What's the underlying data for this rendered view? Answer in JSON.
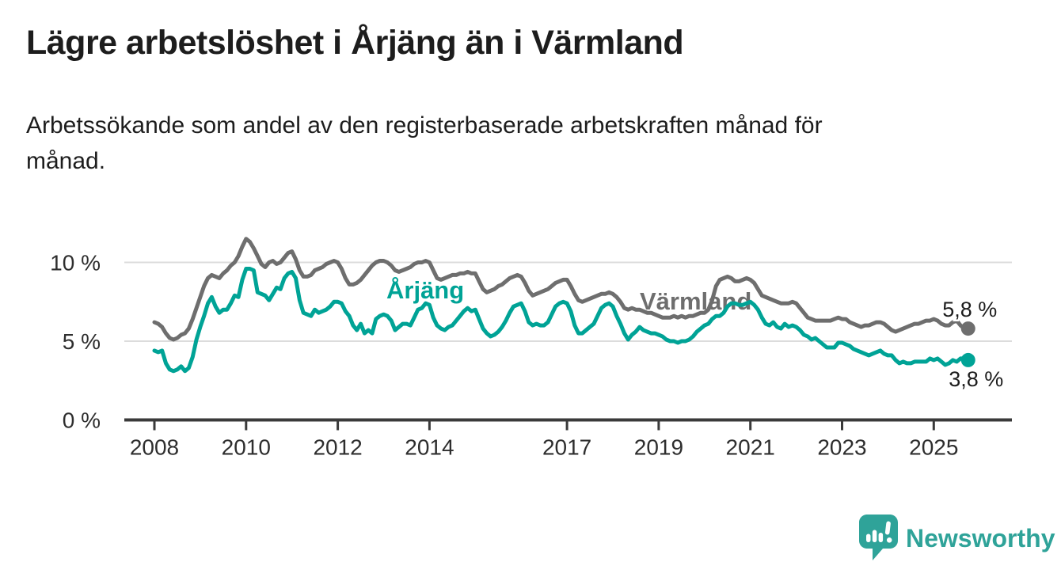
{
  "header": {
    "title": "Lägre arbetslöshet i Årjäng än i Värmland",
    "subtitle_lines": [
      "Arbetssökande som andel av den registerbaserade arbetskraften månad för",
      "månad."
    ]
  },
  "chart_data": {
    "type": "line",
    "unit": "%",
    "x_start": {
      "year": 2008,
      "month": 1
    },
    "x_end": {
      "year": 2025,
      "month": 10
    },
    "x_ticks": [
      2008,
      2010,
      2012,
      2014,
      2017,
      2019,
      2021,
      2023,
      2025
    ],
    "y_ticks": [
      {
        "value": 0,
        "label": "0 %"
      },
      {
        "value": 5,
        "label": "5 %"
      },
      {
        "value": 10,
        "label": "10 %"
      }
    ],
    "ylim": [
      0,
      12
    ],
    "grid": "horizontal",
    "grid_color": "#dcdcdc",
    "axis_color": "#3a3a3a",
    "series": [
      {
        "id": "varmland",
        "name": "Värmland",
        "color": "#6e6e6e",
        "end_label": "5,8 %",
        "final_value": 5.8,
        "values": [
          6.2,
          6.1,
          5.9,
          5.5,
          5.2,
          5.1,
          5.2,
          5.4,
          5.5,
          5.8,
          6.4,
          7.1,
          7.8,
          8.5,
          9.0,
          9.2,
          9.1,
          9.0,
          9.3,
          9.5,
          9.8,
          10.0,
          10.4,
          11.0,
          11.5,
          11.3,
          10.9,
          10.4,
          9.9,
          9.7,
          10.0,
          10.1,
          9.9,
          10.0,
          10.3,
          10.6,
          10.7,
          10.2,
          9.5,
          9.1,
          9.1,
          9.2,
          9.5,
          9.6,
          9.7,
          9.9,
          10.0,
          10.1,
          10.0,
          9.6,
          9.0,
          8.6,
          8.6,
          8.7,
          8.9,
          9.2,
          9.5,
          9.8,
          10.0,
          10.1,
          10.1,
          10.0,
          9.8,
          9.5,
          9.4,
          9.5,
          9.6,
          9.7,
          9.9,
          10.0,
          10.0,
          10.1,
          10.0,
          9.5,
          9.0,
          8.9,
          9.0,
          9.1,
          9.2,
          9.2,
          9.3,
          9.3,
          9.4,
          9.3,
          9.3,
          8.8,
          8.3,
          8.1,
          8.2,
          8.3,
          8.5,
          8.6,
          8.8,
          9.0,
          9.1,
          9.2,
          9.1,
          8.7,
          8.2,
          7.9,
          8.0,
          8.1,
          8.2,
          8.3,
          8.5,
          8.7,
          8.8,
          8.9,
          8.9,
          8.5,
          8.0,
          7.6,
          7.5,
          7.6,
          7.7,
          7.8,
          7.9,
          8.0,
          8.0,
          8.1,
          8.0,
          7.8,
          7.5,
          7.1,
          7.0,
          7.1,
          7.0,
          7.0,
          6.9,
          6.8,
          6.8,
          6.7,
          6.6,
          6.5,
          6.5,
          6.5,
          6.6,
          6.5,
          6.6,
          6.5,
          6.6,
          6.6,
          6.7,
          6.8,
          6.8,
          7.0,
          7.6,
          8.5,
          8.9,
          9.0,
          9.1,
          9.0,
          8.8,
          8.8,
          8.9,
          9.0,
          8.9,
          8.7,
          8.3,
          7.9,
          7.8,
          7.7,
          7.6,
          7.5,
          7.4,
          7.4,
          7.4,
          7.5,
          7.4,
          7.1,
          6.8,
          6.5,
          6.4,
          6.3,
          6.3,
          6.3,
          6.3,
          6.3,
          6.4,
          6.5,
          6.4,
          6.4,
          6.2,
          6.1,
          6.0,
          5.9,
          6.0,
          6.0,
          6.1,
          6.2,
          6.2,
          6.1,
          5.9,
          5.7,
          5.6,
          5.7,
          5.8,
          5.9,
          6.0,
          6.1,
          6.1,
          6.2,
          6.3,
          6.3,
          6.4,
          6.3,
          6.1,
          6.0,
          6.0,
          6.2,
          6.3,
          6.0,
          5.8,
          5.8
        ]
      },
      {
        "id": "arjang",
        "name": "Årjäng",
        "color": "#00a396",
        "end_label": "3,8 %",
        "final_value": 3.8,
        "values": [
          4.4,
          4.3,
          4.4,
          3.6,
          3.2,
          3.1,
          3.2,
          3.4,
          3.1,
          3.3,
          4.0,
          5.1,
          5.9,
          6.6,
          7.4,
          7.8,
          7.2,
          6.8,
          7.0,
          7.0,
          7.4,
          7.9,
          7.8,
          8.9,
          9.6,
          9.6,
          9.5,
          8.1,
          8.0,
          7.9,
          7.6,
          8.0,
          8.4,
          8.3,
          9.0,
          9.3,
          9.4,
          9.0,
          7.6,
          6.8,
          6.7,
          6.6,
          7.0,
          6.8,
          6.9,
          7.0,
          7.2,
          7.5,
          7.5,
          7.4,
          6.9,
          6.6,
          6.0,
          5.7,
          6.1,
          5.5,
          5.7,
          5.5,
          6.4,
          6.6,
          6.7,
          6.6,
          6.3,
          5.7,
          5.9,
          6.1,
          6.1,
          6.0,
          6.5,
          7.0,
          7.1,
          7.4,
          7.3,
          6.5,
          6.0,
          5.8,
          5.7,
          5.9,
          6.0,
          6.3,
          6.6,
          6.9,
          7.1,
          6.9,
          7.0,
          6.4,
          5.8,
          5.5,
          5.3,
          5.4,
          5.6,
          5.9,
          6.3,
          6.8,
          7.2,
          7.3,
          7.4,
          6.9,
          6.2,
          6.0,
          6.1,
          6.0,
          6.0,
          6.2,
          6.7,
          7.2,
          7.4,
          7.5,
          7.4,
          6.9,
          6.0,
          5.5,
          5.5,
          5.7,
          5.9,
          6.1,
          6.6,
          7.1,
          7.3,
          7.4,
          7.2,
          6.6,
          6.1,
          5.5,
          5.1,
          5.4,
          5.6,
          5.9,
          5.7,
          5.6,
          5.5,
          5.5,
          5.4,
          5.3,
          5.1,
          5.0,
          5.0,
          4.9,
          5.0,
          5.0,
          5.1,
          5.3,
          5.6,
          5.8,
          6.0,
          6.1,
          6.4,
          6.6,
          6.6,
          6.8,
          7.2,
          7.4,
          7.4,
          7.3,
          7.3,
          7.4,
          7.5,
          7.3,
          7.0,
          6.5,
          6.1,
          6.0,
          6.2,
          5.9,
          5.8,
          6.1,
          5.9,
          6.0,
          5.9,
          5.7,
          5.4,
          5.3,
          5.1,
          5.2,
          5.0,
          4.8,
          4.6,
          4.6,
          4.6,
          4.9,
          4.9,
          4.8,
          4.7,
          4.5,
          4.4,
          4.3,
          4.2,
          4.1,
          4.2,
          4.3,
          4.4,
          4.2,
          4.1,
          4.1,
          3.8,
          3.6,
          3.7,
          3.6,
          3.6,
          3.7,
          3.7,
          3.7,
          3.7,
          3.9,
          3.8,
          3.9,
          3.7,
          3.5,
          3.6,
          3.8,
          3.7,
          3.9,
          3.9,
          3.8
        ]
      }
    ]
  },
  "branding": {
    "logo_text": "Newsworthy",
    "logo_color": "#2fa399",
    "logo_icon": "bar-chart-speech-bubble-icon"
  }
}
